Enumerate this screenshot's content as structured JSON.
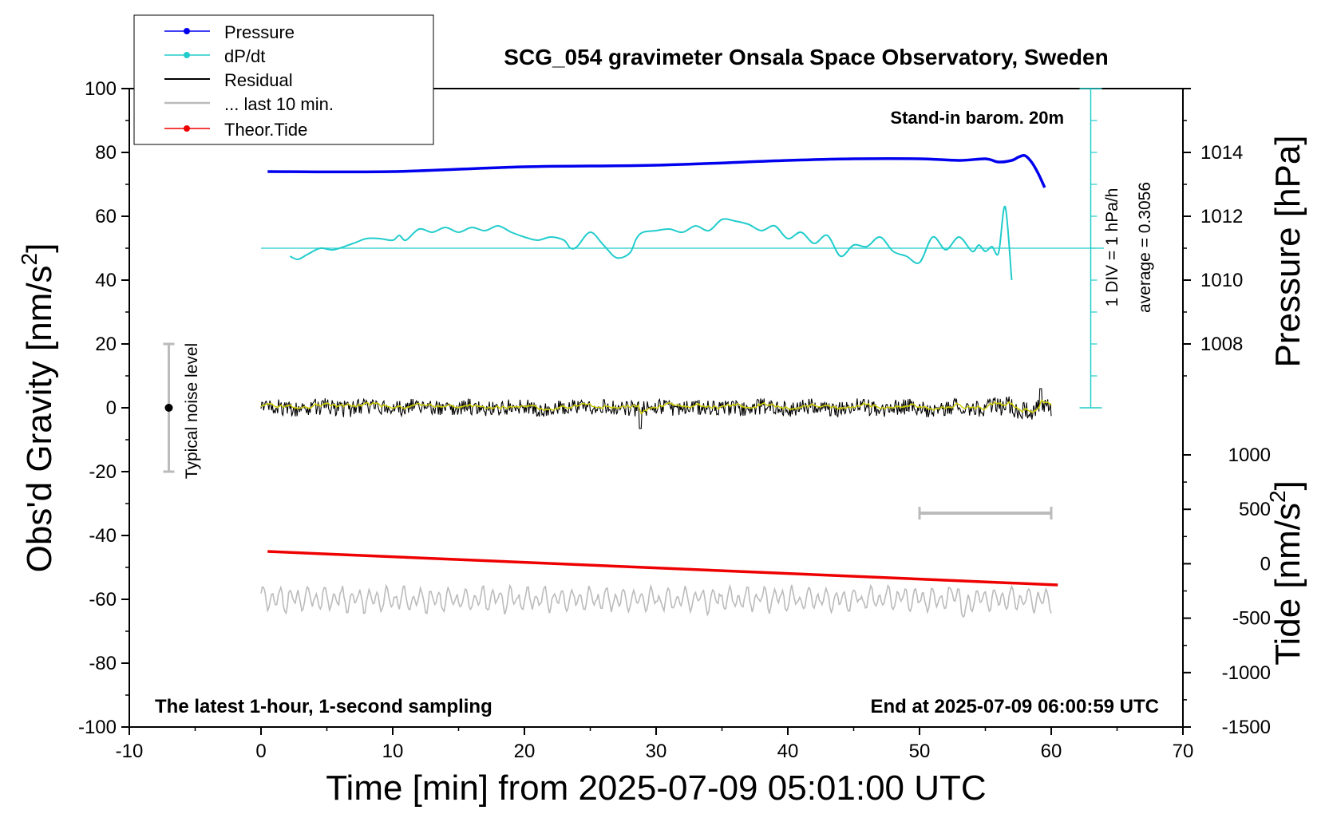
{
  "chart_data": {
    "type": "line",
    "title": "SCG_054 gravimeter Onsala Space Observatory, Sweden",
    "xlabel": "Time [min] from 2025-07-09 05:01:00 UTC",
    "ylabel": "Obs'd Gravity [nm/s",
    "ylabel_sup": "2",
    "ylabel_end": "]",
    "y2label": "Pressure [hPa]",
    "y3label": "Tide [nm/s",
    "y3label_sup": "2",
    "y3label_end": "]",
    "xlim": [
      -10,
      70
    ],
    "ylim": [
      -100,
      100
    ],
    "x_ticks": [
      "-10",
      "0",
      "10",
      "20",
      "30",
      "40",
      "50",
      "60",
      "70"
    ],
    "y_ticks": [
      "-100",
      "-80",
      "-60",
      "-40",
      "-20",
      "0",
      "20",
      "40",
      "60",
      "80",
      "100"
    ],
    "pressure_axis": {
      "ticks": [
        "1008",
        "1010",
        "1012",
        "1014"
      ],
      "range_hpa": [
        1006,
        1016
      ]
    },
    "tide_axis": {
      "ticks": [
        "-1500",
        "-1000",
        "-500",
        "0",
        "500",
        "1000"
      ],
      "range": [
        -1500,
        1500
      ]
    },
    "annotations": {
      "barometer": "Stand-in barom. 20m",
      "div_label": "1 DIV = 1 hPa/h",
      "average_label": "average = 0.3056",
      "noise_label": "Typical noise level",
      "bottom_left": "The latest 1-hour, 1-second sampling",
      "bottom_right": "End at 2025-07-09 06:00:59 UTC"
    },
    "legend": {
      "placement": "top-left",
      "entries": [
        "Pressure",
        "dP/dt",
        "Residual",
        "... last 10 min.",
        "Theor.Tide"
      ]
    },
    "colors": {
      "pressure": "#0000ee",
      "dpdt": "#22cccc",
      "residual": "#000000",
      "residual_smooth": "#cccc00",
      "last10": "#bbbbbb",
      "tide": "#ee0000"
    },
    "series": [
      {
        "name": "Pressure",
        "unit": "hPa",
        "x": [
          0.5,
          10,
          20,
          30,
          40,
          45,
          50,
          53,
          55,
          56,
          57,
          57.5,
          58,
          58.5,
          59,
          59.5
        ],
        "values": [
          1013.4,
          1013.4,
          1013.55,
          1013.6,
          1013.75,
          1013.8,
          1013.8,
          1013.75,
          1013.8,
          1013.7,
          1013.75,
          1013.85,
          1013.9,
          1013.7,
          1013.35,
          1012.9
        ]
      },
      {
        "name": "dP/dt",
        "unit": "nm/s2-plot",
        "x": [
          2.2,
          2.8,
          3.5,
          4.5,
          5.5,
          7,
          8,
          9,
          10,
          10.5,
          11,
          12,
          13,
          14,
          15,
          16,
          17,
          18,
          19,
          20,
          21,
          22,
          23,
          23.5,
          24,
          25,
          26,
          27,
          28,
          28.5,
          29,
          30,
          31,
          32,
          33,
          34,
          35,
          36,
          37,
          38,
          39,
          40,
          41,
          42,
          43,
          44,
          45,
          46,
          47,
          48,
          49,
          50,
          51,
          52,
          53,
          54,
          54.5,
          55,
          55.5,
          56,
          56.5,
          57
        ],
        "values": [
          47.5,
          46.5,
          48,
          50,
          49.5,
          51.5,
          53,
          53,
          52.5,
          54,
          52.5,
          56,
          55,
          56.5,
          55,
          56.5,
          55.5,
          57,
          55,
          53.5,
          52.5,
          53.5,
          52.5,
          50,
          50.5,
          55,
          51,
          47,
          48.5,
          53,
          55,
          55.5,
          56,
          55,
          57,
          55.5,
          59,
          58.5,
          57.5,
          55.5,
          57,
          53,
          55,
          51.5,
          54,
          47.5,
          51,
          50.5,
          53.5,
          49,
          47.5,
          45.5,
          53.5,
          49.5,
          53.5,
          49,
          51,
          49,
          50.5,
          48.5,
          63,
          40
        ]
      },
      {
        "name": "Residual",
        "unit": "nm/s2",
        "x_range": [
          0,
          60
        ],
        "envelope": [
          -5,
          6
        ]
      },
      {
        "name": "... last 10 min.",
        "unit": "nm/s2",
        "x_range": [
          50,
          60
        ],
        "offset": -60,
        "span_marker": [
          50,
          60,
          -33
        ]
      },
      {
        "name": "Theor.Tide",
        "unit": "nm/s2",
        "x": [
          0.5,
          60.5
        ],
        "values": [
          -45,
          -55.5
        ]
      }
    ],
    "noise_level": {
      "x": -7,
      "center": 0,
      "range": [
        -20,
        20
      ]
    },
    "dpdt_baseline": 50
  }
}
